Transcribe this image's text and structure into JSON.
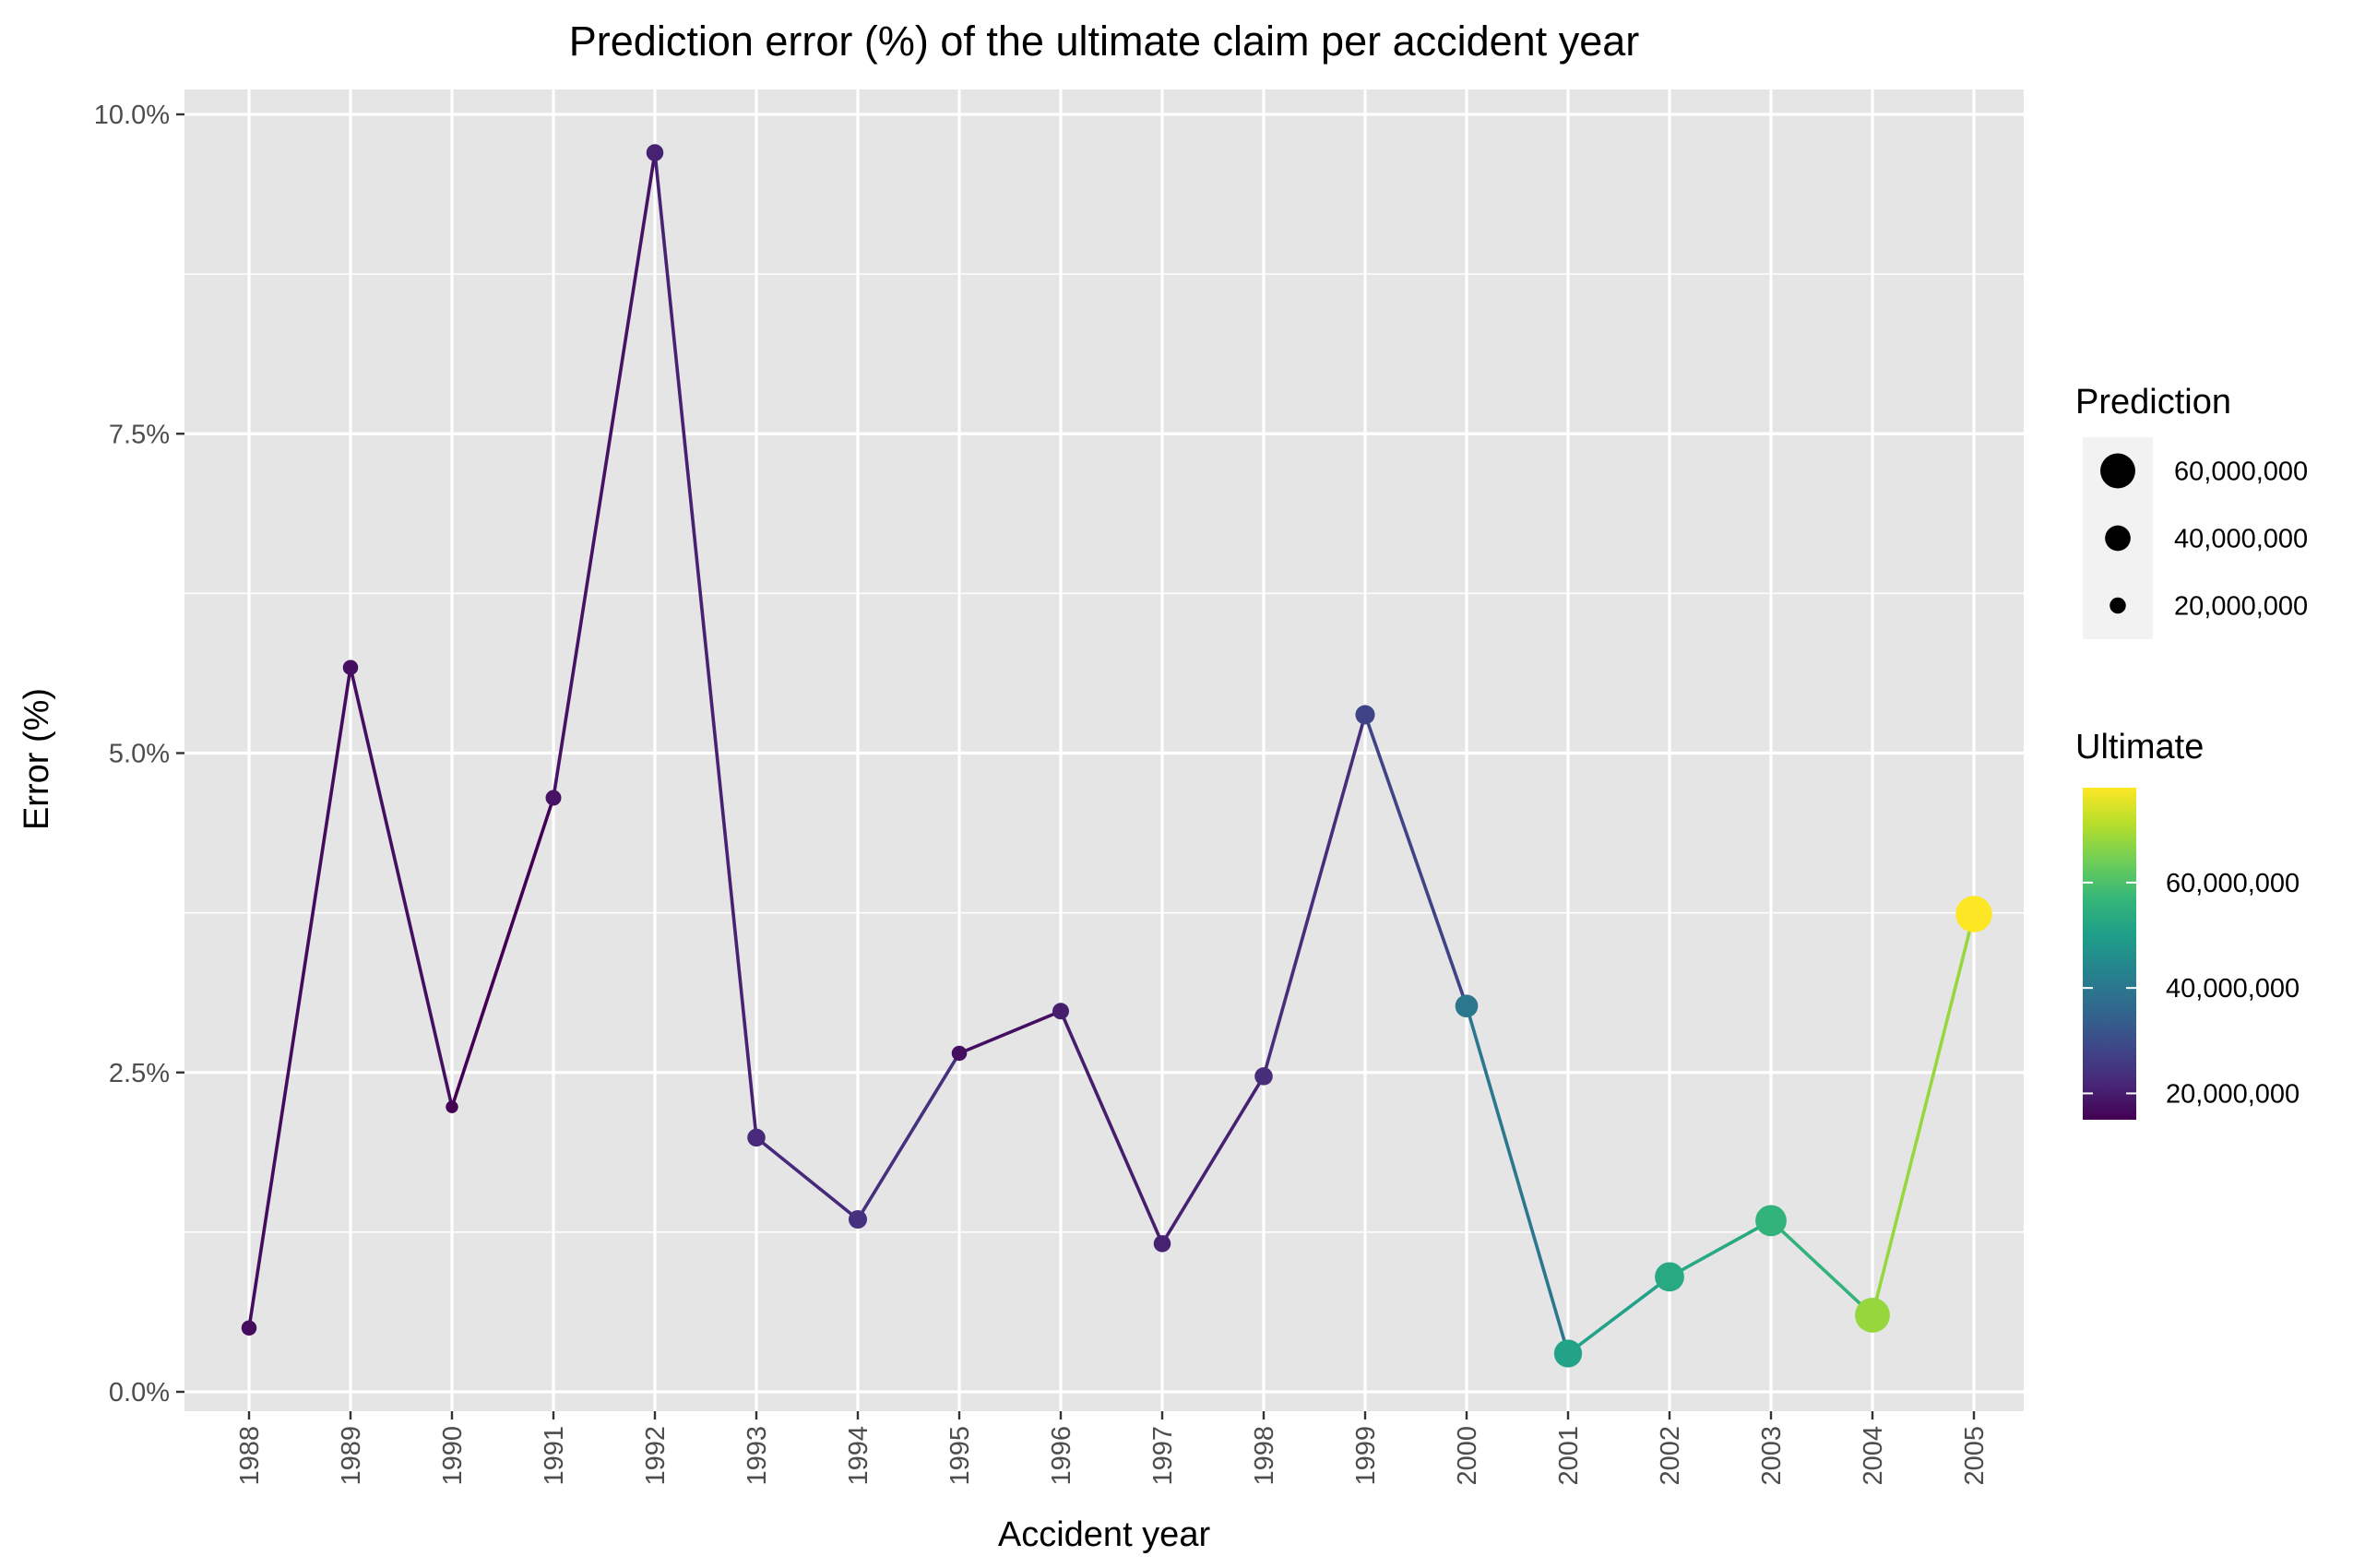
{
  "chart_data": {
    "type": "line",
    "title": "Prediction error (%) of the ultimate claim per accident year",
    "xlabel": "Accident year",
    "ylabel": "Error (%)",
    "ylim": [
      0,
      0.1
    ],
    "y_ticks": [
      0,
      0.025,
      0.05,
      0.075,
      0.1
    ],
    "y_tick_labels": [
      "0.0%",
      "2.5%",
      "5.0%",
      "7.5%",
      "10.0%"
    ],
    "grid": true,
    "panel_background": "#e5e5e5",
    "grid_color": "#ffffff",
    "categories": [
      "1988",
      "1989",
      "1990",
      "1991",
      "1992",
      "1993",
      "1994",
      "1995",
      "1996",
      "1997",
      "1998",
      "1999",
      "2000",
      "2001",
      "2002",
      "2003",
      "2004",
      "2005"
    ],
    "series": [
      {
        "values": [
          0.005,
          0.0567,
          0.0223,
          0.0465,
          0.097,
          0.0199,
          0.0135,
          0.0265,
          0.0298,
          0.0116,
          0.0247,
          0.053,
          0.0302,
          0.003,
          0.009,
          0.0134,
          0.006,
          0.0374
        ],
        "prediction": [
          18000000,
          18000000,
          12000000,
          19000000,
          22000000,
          24000000,
          25000000,
          18000000,
          21000000,
          22000000,
          24000000,
          27000000,
          34000000,
          45000000,
          48000000,
          52000000,
          60000000,
          63000000
        ],
        "ultimate": [
          17000000,
          17500000,
          15000000,
          18000000,
          21000000,
          22500000,
          24000000,
          17500000,
          20000000,
          21000000,
          23000000,
          28000000,
          40000000,
          51000000,
          53000000,
          56000000,
          68000000,
          78000000
        ]
      }
    ],
    "legends": {
      "size": {
        "title": "Prediction",
        "entries": [
          {
            "label": "60,000,000",
            "value": 60000000
          },
          {
            "label": "40,000,000",
            "value": 40000000
          },
          {
            "label": "20,000,000",
            "value": 20000000
          }
        ],
        "key_color": "#000000"
      },
      "color": {
        "title": "Ultimate",
        "range": [
          15000000,
          78000000
        ],
        "entries": [
          {
            "label": "60,000,000",
            "value": 60000000
          },
          {
            "label": "40,000,000",
            "value": 40000000
          },
          {
            "label": "20,000,000",
            "value": 20000000
          }
        ],
        "palette": [
          "#440154",
          "#482878",
          "#3e4989",
          "#31688e",
          "#26828e",
          "#1f9e89",
          "#35b779",
          "#6ece58",
          "#b5de2b",
          "#fde725"
        ]
      }
    }
  }
}
